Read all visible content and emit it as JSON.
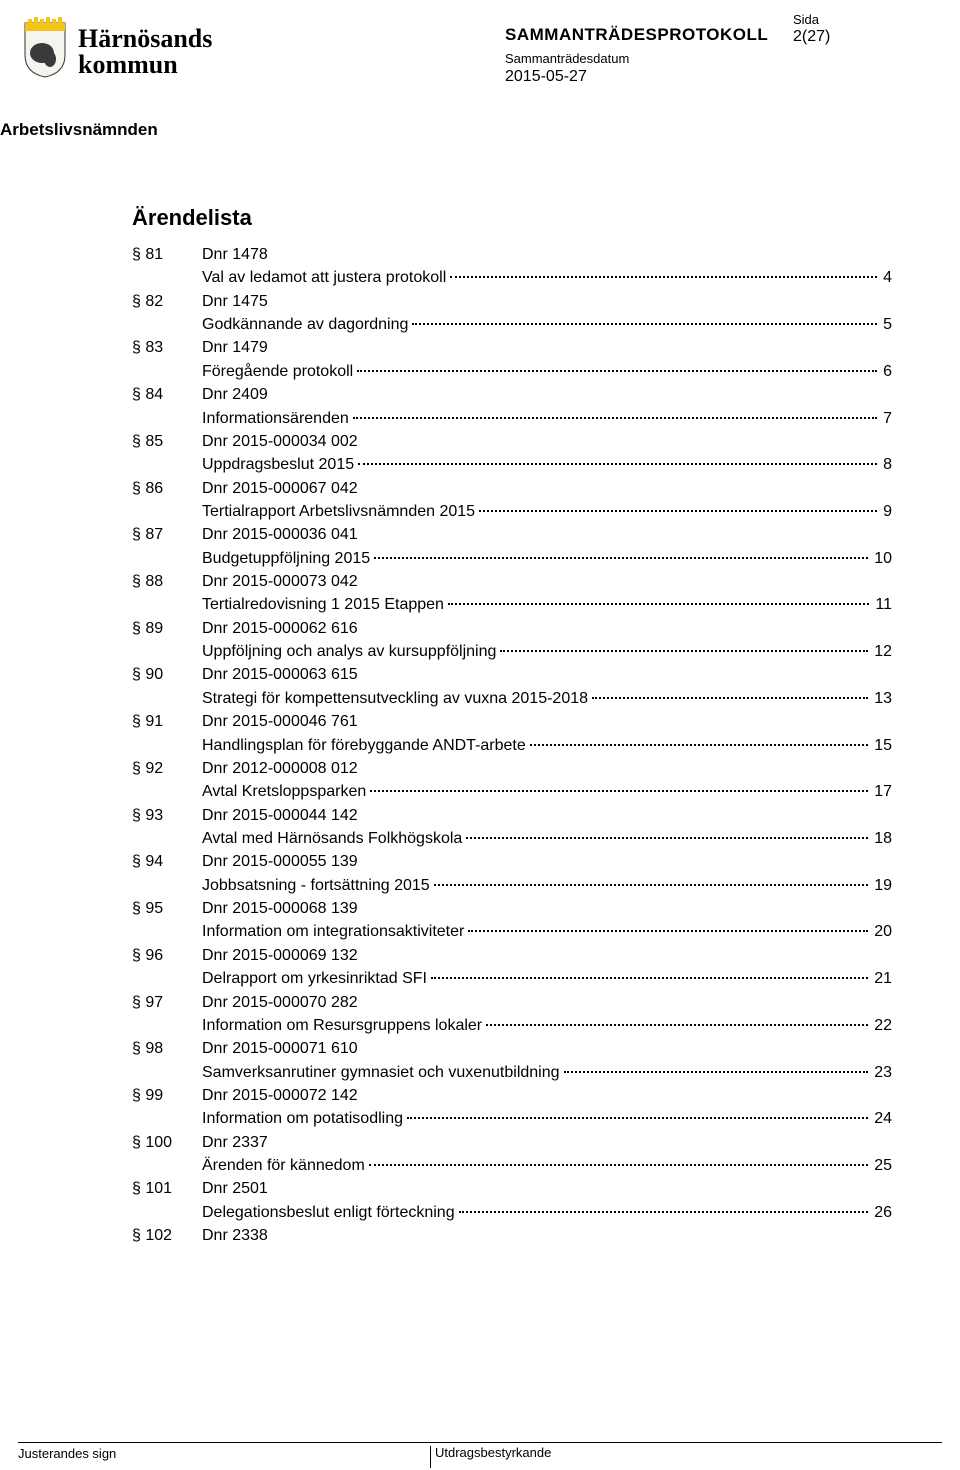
{
  "header": {
    "municipality_top": "Härnösands",
    "municipality_bottom": "kommun",
    "protocol_title": "SAMMANTRÄDESPROTOKOLL",
    "date_label": "Sammanträdesdatum",
    "date_value": "2015-05-27",
    "page_label": "Sida",
    "page_value": "2(27)",
    "committee": "Arbetslivsnämnden"
  },
  "toc": {
    "title": "Ärendelista",
    "items": [
      {
        "para": "§ 81",
        "dnr": "Dnr 1478",
        "title": "Val av ledamot att justera protokoll",
        "page": "4"
      },
      {
        "para": "§ 82",
        "dnr": "Dnr 1475",
        "title": "Godkännande av dagordning",
        "page": "5"
      },
      {
        "para": "§ 83",
        "dnr": "Dnr 1479",
        "title": "Föregående protokoll",
        "page": "6"
      },
      {
        "para": "§ 84",
        "dnr": "Dnr 2409",
        "title": "Informationsärenden",
        "page": "7"
      },
      {
        "para": "§ 85",
        "dnr": "Dnr 2015-000034 002",
        "title": "Uppdragsbeslut 2015",
        "page": "8"
      },
      {
        "para": "§ 86",
        "dnr": "Dnr 2015-000067 042",
        "title": "Tertialrapport Arbetslivsnämnden 2015",
        "page": "9"
      },
      {
        "para": "§ 87",
        "dnr": "Dnr 2015-000036 041",
        "title": "Budgetuppföljning 2015",
        "page": "10"
      },
      {
        "para": "§ 88",
        "dnr": "Dnr 2015-000073 042",
        "title": "Tertialredovisning 1 2015 Etappen",
        "page": "11"
      },
      {
        "para": "§ 89",
        "dnr": "Dnr 2015-000062 616",
        "title": "Uppföljning och analys av kursuppföljning",
        "page": "12"
      },
      {
        "para": "§ 90",
        "dnr": "Dnr 2015-000063 615",
        "title": "Strategi för kompettensutveckling av vuxna 2015-2018",
        "page": "13"
      },
      {
        "para": "§ 91",
        "dnr": "Dnr 2015-000046 761",
        "title": "Handlingsplan för förebyggande ANDT-arbete",
        "page": "15"
      },
      {
        "para": "§ 92",
        "dnr": "Dnr 2012-000008 012",
        "title": "Avtal Kretsloppsparken",
        "page": "17"
      },
      {
        "para": "§ 93",
        "dnr": "Dnr 2015-000044 142",
        "title": "Avtal med Härnösands Folkhögskola",
        "page": "18"
      },
      {
        "para": "§ 94",
        "dnr": "Dnr 2015-000055 139",
        "title": "Jobbsatsning - fortsättning 2015",
        "page": "19"
      },
      {
        "para": "§ 95",
        "dnr": "Dnr 2015-000068 139",
        "title": "Information om integrationsaktiviteter",
        "page": "20"
      },
      {
        "para": "§ 96",
        "dnr": "Dnr 2015-000069 132",
        "title": "Delrapport om yrkesinriktad SFI",
        "page": "21"
      },
      {
        "para": "§ 97",
        "dnr": "Dnr 2015-000070 282",
        "title": "Information om Resursgruppens lokaler",
        "page": "22"
      },
      {
        "para": "§ 98",
        "dnr": "Dnr 2015-000071 610",
        "title": "Samverksanrutiner gymnasiet och vuxenutbildning",
        "page": "23"
      },
      {
        "para": "§ 99",
        "dnr": "Dnr 2015-000072 142",
        "title": "Information om potatisodling",
        "page": "24"
      },
      {
        "para": "§ 100",
        "dnr": "Dnr 2337",
        "title": "Ärenden för kännedom",
        "page": "25"
      },
      {
        "para": "§ 101",
        "dnr": "Dnr 2501",
        "title": "Delegationsbeslut enligt förteckning",
        "page": "26"
      },
      {
        "para": "§ 102",
        "dnr": "Dnr 2338",
        "title": "",
        "page": ""
      }
    ]
  },
  "footer": {
    "left": "Justerandes sign",
    "mid": "Utdragsbestyrkande"
  }
}
